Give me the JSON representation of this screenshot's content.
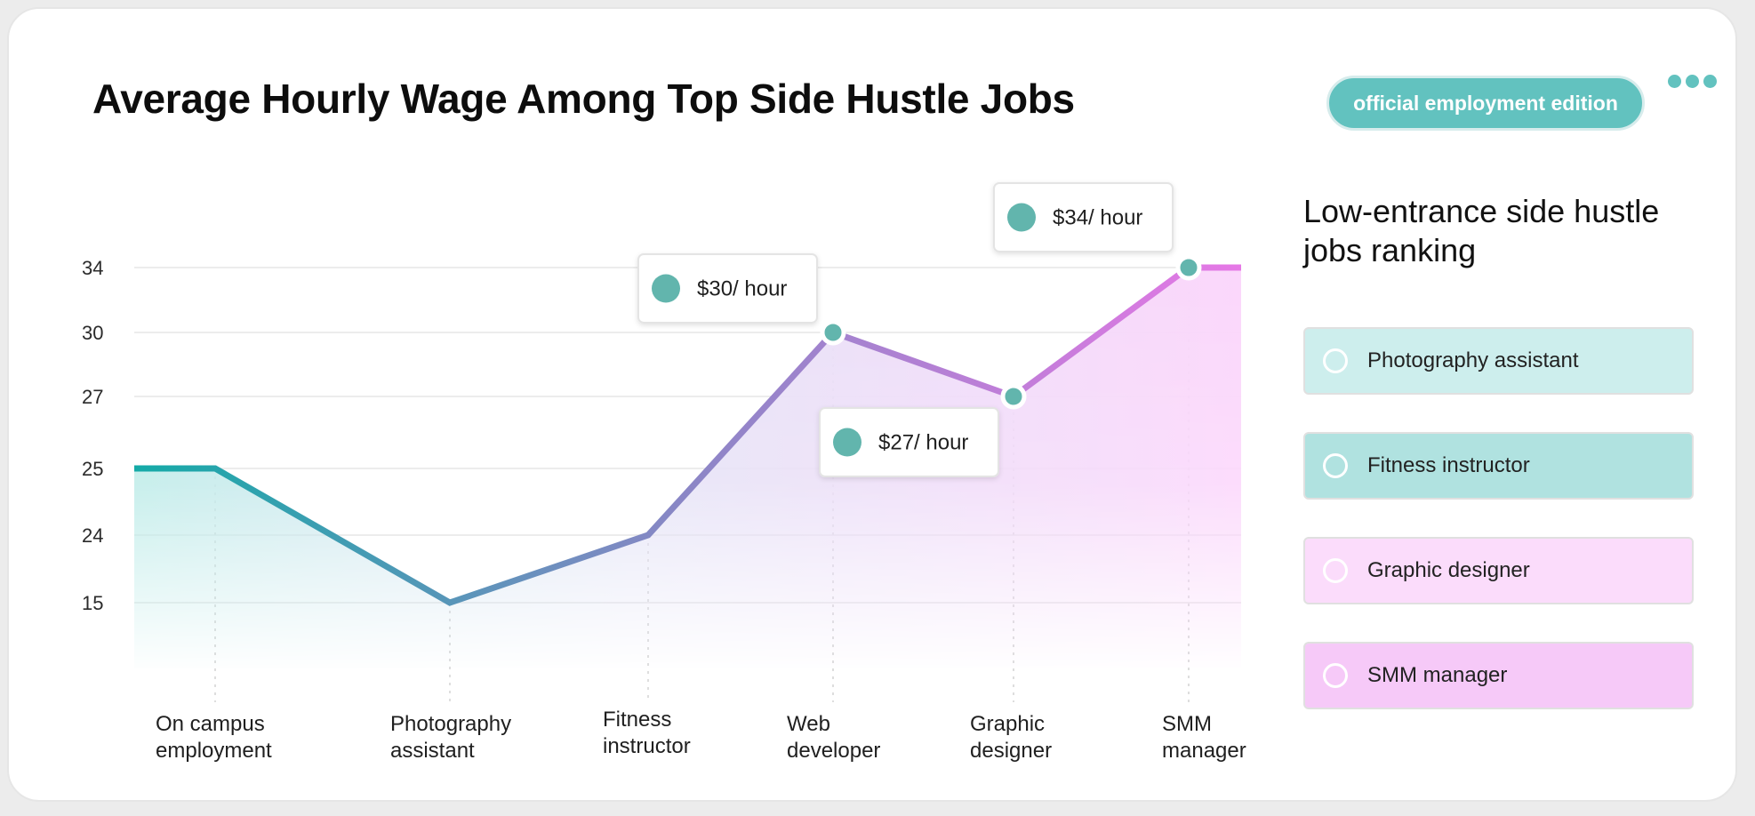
{
  "header": {
    "title": "Average Hourly Wage Among Top Side Hustle Jobs",
    "badge": "official employment edition",
    "more_icon": "ellipsis-icon"
  },
  "sidebar": {
    "title": "Low-entrance side hustle jobs ranking",
    "items": [
      {
        "label": "Photography assistant",
        "color": "#cdeeed"
      },
      {
        "label": "Fitness instructor",
        "color": "#b0e2e0"
      },
      {
        "label": "Graphic designer",
        "color": "#fbdcfb"
      },
      {
        "label": "SMM manager",
        "color": "#f6c9f8"
      }
    ]
  },
  "chart_data": {
    "type": "area",
    "title": "Average Hourly Wage Among Top Side Hustle Jobs",
    "xlabel": "",
    "ylabel": "",
    "categories": [
      [
        "On campus",
        "employment"
      ],
      [
        "Photography",
        "assistant"
      ],
      [
        "Fitness",
        "instructor"
      ],
      [
        "Web",
        "developer"
      ],
      [
        "Graphic",
        "designer"
      ],
      [
        "SMM",
        "manager"
      ]
    ],
    "values": [
      25,
      15,
      24,
      30,
      27,
      34
    ],
    "y_ticks": [
      15,
      24,
      25,
      27,
      30,
      34
    ],
    "y_tick_labels": [
      "15",
      "24",
      "25",
      "27",
      "30",
      "34"
    ],
    "grid": true,
    "annotations": [
      {
        "category_index": 3,
        "text": "$30/ hour"
      },
      {
        "category_index": 4,
        "text": "$27/ hour"
      },
      {
        "category_index": 5,
        "text": "$34/ hour"
      }
    ],
    "colors": {
      "gradient_start": "#14aaa7",
      "gradient_mid": "#8b86c6",
      "gradient_end": "#e678e6",
      "marker": "#62b5ad",
      "grid": "#ececec"
    }
  }
}
